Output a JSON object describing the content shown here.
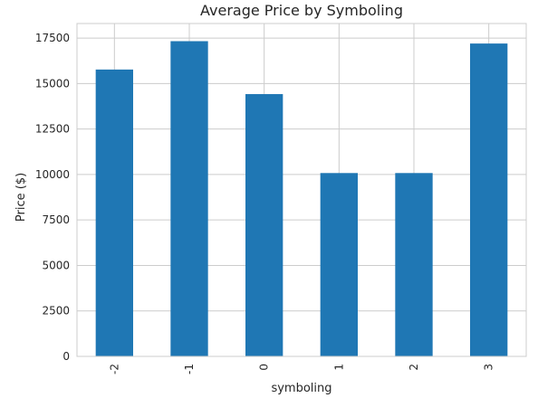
{
  "chart_data": {
    "type": "bar",
    "title": "Average Price by Symboling",
    "xlabel": "symboling",
    "ylabel": "Price ($)",
    "categories": [
      "-2",
      "-1",
      "0",
      "1",
      "2",
      "3"
    ],
    "values": [
      15770,
      17330,
      14420,
      10080,
      10080,
      17200
    ],
    "ylim": [
      0,
      18300
    ],
    "yticks": [
      0,
      2500,
      5000,
      7500,
      10000,
      12500,
      15000,
      17500
    ],
    "ytick_labels": [
      "0",
      "2500",
      "5000",
      "7500",
      "10000",
      "12500",
      "15000",
      "17500"
    ],
    "grid": true,
    "bar_color": "#1f77b4",
    "grid_color": "#cccccc",
    "spine_color": "#cccccc"
  }
}
